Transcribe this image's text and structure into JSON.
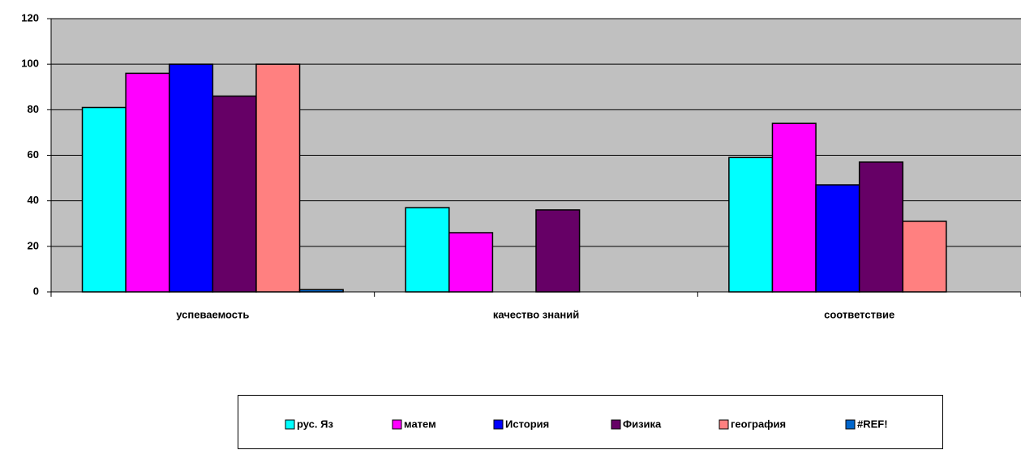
{
  "chart_data": {
    "type": "bar",
    "categories": [
      "успеваемость",
      "качество знаний",
      "соответствие"
    ],
    "series": [
      {
        "name": "рус. Яз",
        "color": "#00ffff",
        "values": [
          81,
          37,
          59
        ]
      },
      {
        "name": "матем",
        "color": "#ff00ff",
        "values": [
          96,
          26,
          74
        ]
      },
      {
        "name": "История",
        "color": "#0000ff",
        "values": [
          100,
          0,
          47
        ]
      },
      {
        "name": "Физика",
        "color": "#660066",
        "values": [
          86,
          36,
          57
        ]
      },
      {
        "name": "география",
        "color": "#ff8080",
        "values": [
          100,
          0,
          31
        ]
      },
      {
        "name": "#REF!",
        "color": "#0066cc",
        "values": [
          1,
          0,
          0
        ]
      }
    ],
    "ylim": [
      0,
      120
    ],
    "yticks": [
      0,
      20,
      40,
      60,
      80,
      100,
      120
    ],
    "grid": true,
    "legend": "bottom"
  }
}
